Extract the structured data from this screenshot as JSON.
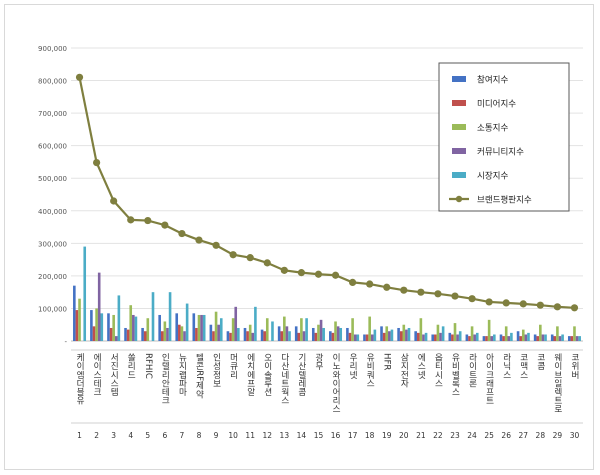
{
  "chart_data": {
    "type": "bar",
    "title": "",
    "xlabel": "",
    "ylabel": "",
    "ylim": [
      0,
      900000
    ],
    "y_ticks": [
      "-",
      "100,000",
      "200,000",
      "300,000",
      "400,000",
      "500,000",
      "600,000",
      "700,000",
      "800,000",
      "900,000"
    ],
    "grid": true,
    "legend_position": "right",
    "categories": [
      "케이엠더블유",
      "에이스테크",
      "서진시스템",
      "쏠리드",
      "RFHIC",
      "인텔리안테크",
      "뉴지랩파마",
      "텔콘RF제약",
      "인성정보",
      "머큐리",
      "에치에프알",
      "오이솔루션",
      "다산네트웍스",
      "기산텔레콤",
      "광무",
      "이노와이어리스",
      "우리넷",
      "유비쿼스",
      "HFR",
      "삼지전자",
      "에스넷",
      "옵티시스",
      "유비벨록스",
      "라이트론",
      "아이크래프트",
      "라닉스",
      "코맥스",
      "코콤",
      "웨이브일렉트로",
      "코위버"
    ],
    "ranks": [
      "1",
      "2",
      "3",
      "4",
      "5",
      "6",
      "7",
      "8",
      "9",
      "10",
      "11",
      "12",
      "13",
      "14",
      "15",
      "16",
      "17",
      "18",
      "19",
      "20",
      "21",
      "22",
      "23",
      "24",
      "25",
      "26",
      "27",
      "28",
      "29",
      "30"
    ],
    "series": [
      {
        "name": "참여지수",
        "kind": "bar",
        "color": "#4472c4",
        "values": [
          170000,
          95000,
          85000,
          40000,
          40000,
          80000,
          85000,
          85000,
          50000,
          30000,
          40000,
          35000,
          45000,
          45000,
          40000,
          30000,
          40000,
          20000,
          45000,
          40000,
          30000,
          20000,
          25000,
          20000,
          15000,
          20000,
          30000,
          20000,
          20000,
          15000
        ]
      },
      {
        "name": "미디어지수",
        "kind": "bar",
        "color": "#c0504d",
        "values": [
          95000,
          45000,
          40000,
          35000,
          30000,
          30000,
          50000,
          40000,
          30000,
          25000,
          30000,
          30000,
          30000,
          25000,
          25000,
          25000,
          25000,
          20000,
          25000,
          30000,
          25000,
          20000,
          20000,
          15000,
          15000,
          15000,
          15000,
          15000,
          15000,
          15000
        ]
      },
      {
        "name": "소통지수",
        "kind": "bar",
        "color": "#9bbb59",
        "values": [
          130000,
          100000,
          80000,
          110000,
          70000,
          60000,
          45000,
          80000,
          90000,
          70000,
          50000,
          70000,
          75000,
          70000,
          50000,
          60000,
          70000,
          75000,
          45000,
          50000,
          70000,
          50000,
          55000,
          45000,
          65000,
          45000,
          35000,
          50000,
          45000,
          45000
        ]
      },
      {
        "name": "커뮤니티지수",
        "kind": "bar",
        "color": "#8064a2",
        "values": [
          0,
          210000,
          15000,
          80000,
          0,
          40000,
          30000,
          80000,
          50000,
          105000,
          25000,
          0,
          45000,
          30000,
          65000,
          45000,
          20000,
          20000,
          30000,
          35000,
          20000,
          25000,
          20000,
          20000,
          15000,
          15000,
          20000,
          20000,
          15000,
          15000
        ]
      },
      {
        "name": "시장지수",
        "kind": "bar",
        "color": "#4bacc6",
        "values": [
          290000,
          85000,
          140000,
          75000,
          150000,
          150000,
          115000,
          80000,
          70000,
          40000,
          105000,
          60000,
          30000,
          70000,
          40000,
          40000,
          20000,
          35000,
          35000,
          40000,
          25000,
          45000,
          30000,
          25000,
          20000,
          25000,
          25000,
          20000,
          20000,
          15000
        ]
      },
      {
        "name": "브랜드평판지수",
        "kind": "line",
        "color": "#7f7f3f",
        "values": [
          810000,
          548000,
          430000,
          372000,
          370000,
          356000,
          330000,
          310000,
          294000,
          265000,
          256000,
          240000,
          217000,
          210000,
          205000,
          202000,
          180000,
          175000,
          165000,
          156000,
          150000,
          145000,
          138000,
          130000,
          120000,
          117000,
          114000,
          110000,
          105000,
          102000
        ]
      }
    ]
  }
}
